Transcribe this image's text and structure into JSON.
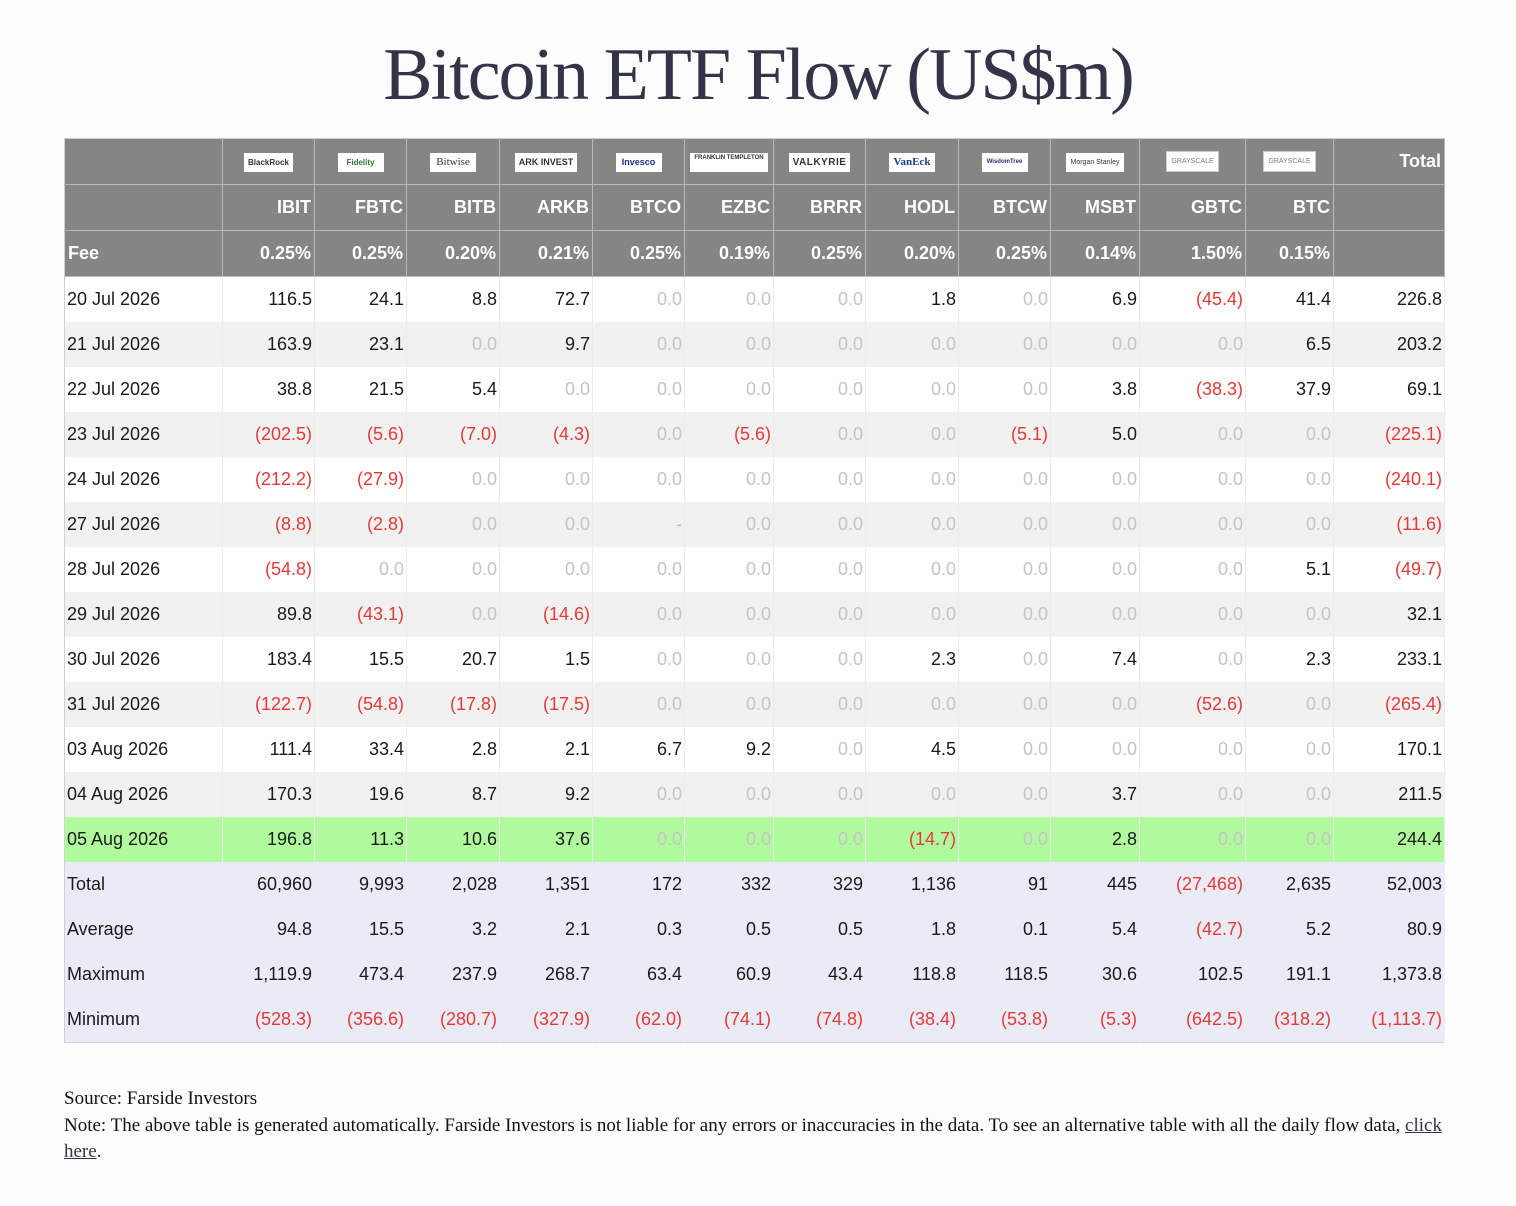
{
  "title": "Bitcoin ETF Flow (US$m)",
  "header": {
    "total_label": "Total",
    "fee_label": "Fee",
    "logos": [
      "BlackRock",
      "Fidelity",
      "Bitwise",
      "ARK INVEST",
      "Invesco",
      "FRANKLIN TEMPLETON",
      "VALKYRIE",
      "VanEck",
      "WisdomTree",
      "Morgan Stanley",
      "GRAYSCALE",
      "GRAYSCALE"
    ],
    "tickers": [
      "IBIT",
      "FBTC",
      "BITB",
      "ARKB",
      "BTCO",
      "EZBC",
      "BRRR",
      "HODL",
      "BTCW",
      "MSBT",
      "GBTC",
      "BTC"
    ],
    "fees": [
      "0.25%",
      "0.25%",
      "0.20%",
      "0.21%",
      "0.25%",
      "0.19%",
      "0.25%",
      "0.20%",
      "0.25%",
      "0.14%",
      "1.50%",
      "0.15%"
    ]
  },
  "rows": [
    {
      "date": "20 Jul 2026",
      "values": [
        "116.5",
        "24.1",
        "8.8",
        "72.7",
        "0.0",
        "0.0",
        "0.0",
        "1.8",
        "0.0",
        "6.9",
        "(45.4)",
        "41.4",
        "226.8"
      ]
    },
    {
      "date": "21 Jul 2026",
      "values": [
        "163.9",
        "23.1",
        "0.0",
        "9.7",
        "0.0",
        "0.0",
        "0.0",
        "0.0",
        "0.0",
        "0.0",
        "0.0",
        "6.5",
        "203.2"
      ]
    },
    {
      "date": "22 Jul 2026",
      "values": [
        "38.8",
        "21.5",
        "5.4",
        "0.0",
        "0.0",
        "0.0",
        "0.0",
        "0.0",
        "0.0",
        "3.8",
        "(38.3)",
        "37.9",
        "69.1"
      ]
    },
    {
      "date": "23 Jul 2026",
      "values": [
        "(202.5)",
        "(5.6)",
        "(7.0)",
        "(4.3)",
        "0.0",
        "(5.6)",
        "0.0",
        "0.0",
        "(5.1)",
        "5.0",
        "0.0",
        "0.0",
        "(225.1)"
      ]
    },
    {
      "date": "24 Jul 2026",
      "values": [
        "(212.2)",
        "(27.9)",
        "0.0",
        "0.0",
        "0.0",
        "0.0",
        "0.0",
        "0.0",
        "0.0",
        "0.0",
        "0.0",
        "0.0",
        "(240.1)"
      ]
    },
    {
      "date": "27 Jul 2026",
      "values": [
        "(8.8)",
        "(2.8)",
        "0.0",
        "0.0",
        "-",
        "0.0",
        "0.0",
        "0.0",
        "0.0",
        "0.0",
        "0.0",
        "0.0",
        "(11.6)"
      ]
    },
    {
      "date": "28 Jul 2026",
      "values": [
        "(54.8)",
        "0.0",
        "0.0",
        "0.0",
        "0.0",
        "0.0",
        "0.0",
        "0.0",
        "0.0",
        "0.0",
        "0.0",
        "5.1",
        "(49.7)"
      ]
    },
    {
      "date": "29 Jul 2026",
      "values": [
        "89.8",
        "(43.1)",
        "0.0",
        "(14.6)",
        "0.0",
        "0.0",
        "0.0",
        "0.0",
        "0.0",
        "0.0",
        "0.0",
        "0.0",
        "32.1"
      ]
    },
    {
      "date": "30 Jul 2026",
      "values": [
        "183.4",
        "15.5",
        "20.7",
        "1.5",
        "0.0",
        "0.0",
        "0.0",
        "2.3",
        "0.0",
        "7.4",
        "0.0",
        "2.3",
        "233.1"
      ]
    },
    {
      "date": "31 Jul 2026",
      "values": [
        "(122.7)",
        "(54.8)",
        "(17.8)",
        "(17.5)",
        "0.0",
        "0.0",
        "0.0",
        "0.0",
        "0.0",
        "0.0",
        "(52.6)",
        "0.0",
        "(265.4)"
      ]
    },
    {
      "date": "03 Aug 2026",
      "values": [
        "111.4",
        "33.4",
        "2.8",
        "2.1",
        "6.7",
        "9.2",
        "0.0",
        "4.5",
        "0.0",
        "0.0",
        "0.0",
        "0.0",
        "170.1"
      ]
    },
    {
      "date": "04 Aug 2026",
      "values": [
        "170.3",
        "19.6",
        "8.7",
        "9.2",
        "0.0",
        "0.0",
        "0.0",
        "0.0",
        "0.0",
        "3.7",
        "0.0",
        "0.0",
        "211.5"
      ]
    },
    {
      "date": "05 Aug 2026",
      "highlight": true,
      "values": [
        "196.8",
        "11.3",
        "10.6",
        "37.6",
        "0.0",
        "0.0",
        "0.0",
        "(14.7)",
        "0.0",
        "2.8",
        "0.0",
        "0.0",
        "244.4"
      ]
    }
  ],
  "summary": [
    {
      "label": "Total",
      "values": [
        "60,960",
        "9,993",
        "2,028",
        "1,351",
        "172",
        "332",
        "329",
        "1,136",
        "91",
        "445",
        "(27,468)",
        "2,635",
        "52,003"
      ]
    },
    {
      "label": "Average",
      "values": [
        "94.8",
        "15.5",
        "3.2",
        "2.1",
        "0.3",
        "0.5",
        "0.5",
        "1.8",
        "0.1",
        "5.4",
        "(42.7)",
        "5.2",
        "80.9"
      ]
    },
    {
      "label": "Maximum",
      "values": [
        "1,119.9",
        "473.4",
        "237.9",
        "268.7",
        "63.4",
        "60.9",
        "43.4",
        "118.8",
        "118.5",
        "30.6",
        "102.5",
        "191.1",
        "1,373.8"
      ]
    },
    {
      "label": "Minimum",
      "values": [
        "(528.3)",
        "(356.6)",
        "(280.7)",
        "(327.9)",
        "(62.0)",
        "(74.1)",
        "(74.8)",
        "(38.4)",
        "(53.8)",
        "(5.3)",
        "(642.5)",
        "(318.2)",
        "(1,113.7)"
      ]
    }
  ],
  "footer": {
    "source": "Source: Farside Investors",
    "note_prefix": "Note: The above table is generated automatically. Farside Investors is not liable for any errors or inaccuracies in the data. To see an alternative table with all the daily flow data, ",
    "link_text": "click here",
    "note_suffix": "."
  }
}
